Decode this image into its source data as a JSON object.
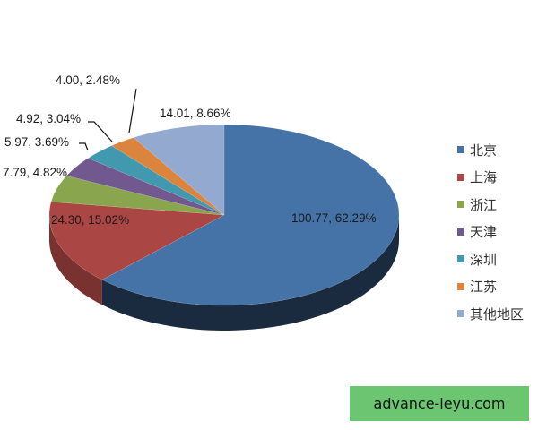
{
  "chart_data": {
    "type": "pie",
    "style": "3d",
    "categories": [
      "北京",
      "上海",
      "浙江",
      "天津",
      "深圳",
      "江苏",
      "其他地区"
    ],
    "values": [
      100.77,
      24.3,
      7.79,
      5.97,
      4.92,
      4.0,
      14.01
    ],
    "percentages": [
      62.29,
      15.02,
      4.82,
      3.69,
      3.04,
      2.48,
      8.66
    ],
    "data_labels": [
      "100.77, 62.29%",
      "24.30, 15.02%",
      "7.79, 4.82%",
      "5.97, 3.69%",
      "4.92, 3.04%",
      "4.00, 2.48%",
      "14.01, 8.66%"
    ],
    "colors": [
      "#4572a7",
      "#aa4643",
      "#89a54e",
      "#71588f",
      "#4198af",
      "#db843d",
      "#93a9cf"
    ],
    "legend_position": "right",
    "start_angle": "12 o'clock",
    "direction": "clockwise"
  },
  "watermark": "advance-leyu.com"
}
